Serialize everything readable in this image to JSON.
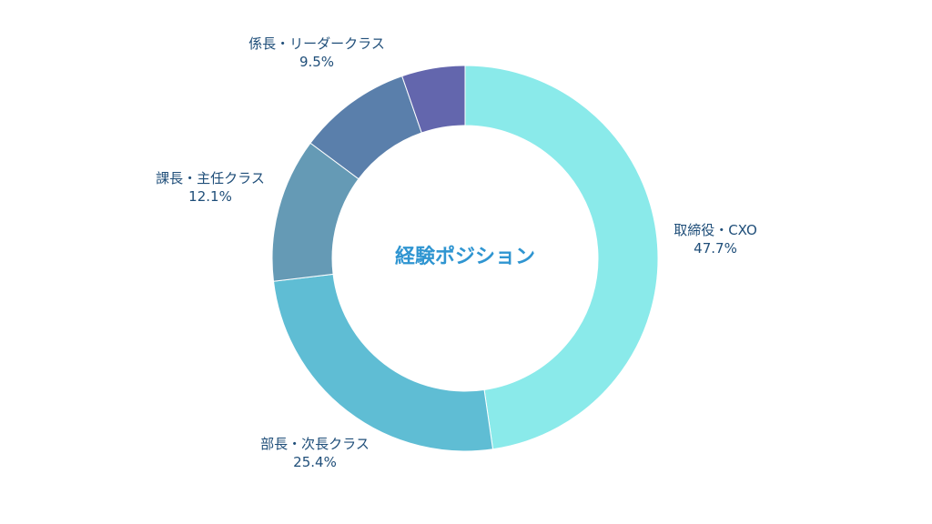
{
  "chart_data": {
    "type": "pie",
    "title": "経験ポジション",
    "donut": true,
    "slices": [
      {
        "label": "取締役・CXO",
        "value": 47.7,
        "display": "47.7%",
        "color": "#8aeaea"
      },
      {
        "label": "部長・次長クラス",
        "value": 25.4,
        "display": "25.4%",
        "color": "#5fbdd4"
      },
      {
        "label": "課長・主任クラス",
        "value": 12.1,
        "display": "12.1%",
        "color": "#659ab5"
      },
      {
        "label": "係長・リーダークラス",
        "value": 9.5,
        "display": "9.5%",
        "color": "#5a7fab"
      },
      {
        "label": "",
        "value": 5.3,
        "display": "",
        "color": "#6366ad"
      }
    ]
  }
}
